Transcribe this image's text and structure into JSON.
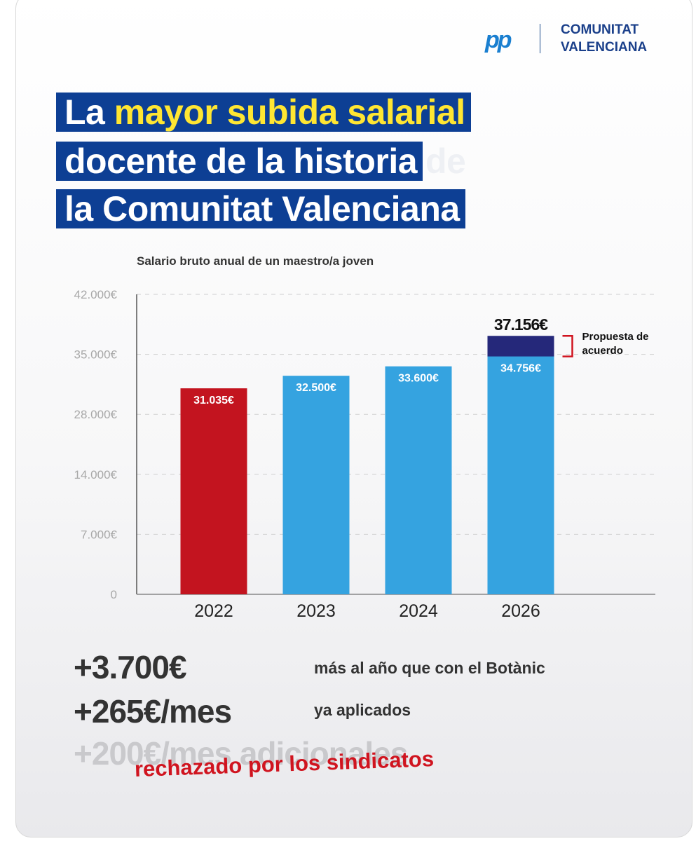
{
  "header": {
    "logo": "pp",
    "org": [
      "COMUNITAT",
      "VALENCIANA"
    ],
    "title": {
      "line1": [
        "La",
        "mayor subida salarial"
      ],
      "line2": [
        "docente de la historia",
        "de"
      ],
      "line3": "la Comunitat Valenciana"
    }
  },
  "chart_data": {
    "type": "bar",
    "subtitle": "Salario bruto anual de un maestro/a joven",
    "categories": [
      "2022",
      "2023",
      "2024",
      "2026"
    ],
    "series": [
      {
        "colors": [
          "#c3141f",
          "#35a3e0",
          "#35a3e0",
          "#35a3e0"
        ],
        "values": [
          31035,
          32500,
          33600,
          34756
        ],
        "value_labels": [
          "31.035€",
          "32.500€",
          "33.600€",
          "34.756€"
        ]
      },
      {
        "name": "Propuesta de acuerdo",
        "color": "#25287a",
        "values": [
          null,
          null,
          null,
          37156
        ],
        "value_labels": [
          null,
          null,
          null,
          "37.156€"
        ]
      }
    ],
    "ylim": [
      0,
      42000
    ],
    "yticks": [
      0,
      {
        "value": 7000,
        "label": "7.000€"
      },
      {
        "value": 14000,
        "label": "14.000€"
      },
      {
        "value": 28000,
        "label": "28.000€"
      },
      {
        "value": 35000,
        "label": "35.000€"
      },
      {
        "value": 42000,
        "label": "42.000€"
      }
    ],
    "grid": true
  },
  "stats": [
    {
      "value": "+3.700€",
      "text": "más al año que con el Botànic"
    },
    {
      "value": "+265€/mes",
      "text": "ya aplicados"
    },
    {
      "value": "+200€/mes adicionales",
      "text": "rechazado por los sindicatos"
    }
  ]
}
